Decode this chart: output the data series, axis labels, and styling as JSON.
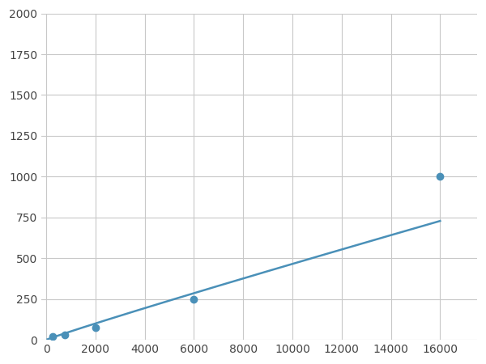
{
  "x": [
    250,
    750,
    2000,
    6000,
    16000
  ],
  "y": [
    20,
    30,
    75,
    250,
    1000
  ],
  "line_color": "#4a90b8",
  "marker_color": "#4a90b8",
  "marker_size": 6,
  "line_width": 1.8,
  "xlim": [
    -200,
    17500
  ],
  "ylim": [
    0,
    2000
  ],
  "xticks": [
    0,
    2000,
    4000,
    6000,
    8000,
    10000,
    12000,
    14000,
    16000
  ],
  "yticks": [
    0,
    250,
    500,
    750,
    1000,
    1250,
    1500,
    1750,
    2000
  ],
  "grid_color": "#c8c8c8",
  "background_color": "#ffffff",
  "fig_width": 6.0,
  "fig_height": 4.5
}
